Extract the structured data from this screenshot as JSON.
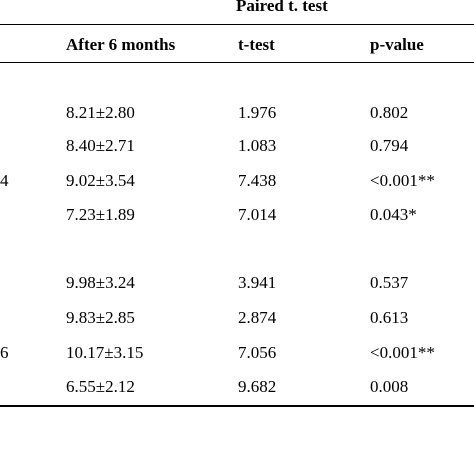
{
  "table": {
    "group_header": "Paired t. test",
    "columns": [
      "After 6 months",
      "t-test",
      "p-value"
    ],
    "rows": [
      {
        "label": "",
        "after": "8.21±2.80",
        "t": "1.976",
        "p": "0.802"
      },
      {
        "label": "",
        "after": "8.40±2.71",
        "t": "1.083",
        "p": "0.794"
      },
      {
        "label": "4",
        "after": "9.02±3.54",
        "t": "7.438",
        "p": "<0.001**"
      },
      {
        "label": "",
        "after": "7.23±1.89",
        "t": "7.014",
        "p": "0.043*"
      },
      {
        "label": "",
        "after": "9.98±3.24",
        "t": "3.941",
        "p": "0.537"
      },
      {
        "label": "",
        "after": "9.83±2.85",
        "t": "2.874",
        "p": "0.613"
      },
      {
        "label": "6",
        "after": "10.17±3.15",
        "t": "7.056",
        "p": "<0.001**"
      },
      {
        "label": "",
        "after": "6.55±2.12",
        "t": "9.682",
        "p": "0.008"
      }
    ]
  }
}
